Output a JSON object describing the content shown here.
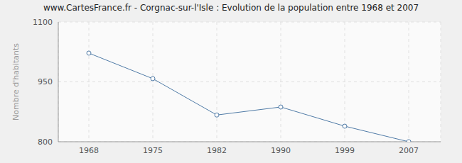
{
  "chart_data": {
    "type": "line",
    "title": "www.CartesFrance.fr - Corgnac-sur-l'Isle : Evolution de la population entre 1968 et 2007",
    "y_label": "Nombre d'habitants",
    "categories": [
      "1968",
      "1975",
      "1982",
      "1990",
      "1999",
      "2007"
    ],
    "values": [
      1022,
      958,
      867,
      887,
      839,
      800
    ],
    "color": "#4f7aa6",
    "ylim": [
      800,
      1100
    ],
    "yticks": [
      800,
      950,
      1100
    ],
    "grid": true,
    "marker": "circle"
  }
}
